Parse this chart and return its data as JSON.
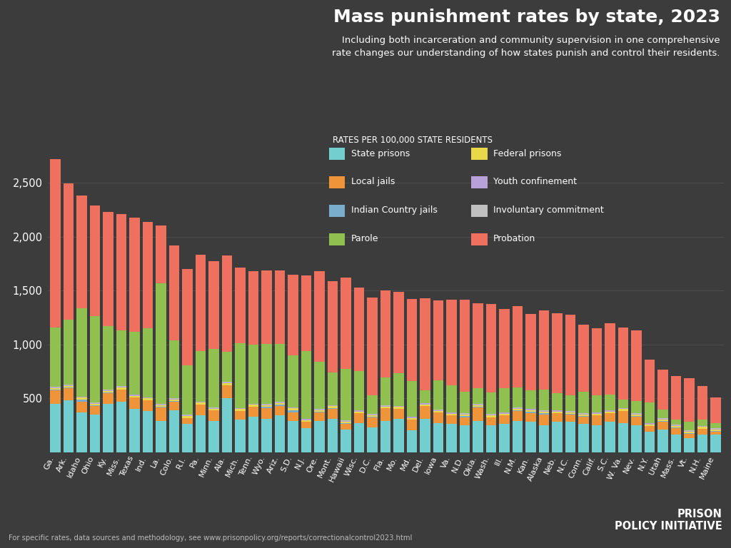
{
  "title": "Mass punishment rates by state, 2023",
  "subtitle": "Including both incarceration and community supervision in one comprehensive\nrate changes our understanding of how states punish and control their residents.",
  "legend_title": "RATES PER 100,000 STATE RESIDENTS",
  "footer": "For specific rates, data sources and methodology, see www.prisonpolicy.org/reports/correctionalcontrol2023.html",
  "categories": [
    "Ga.",
    "Ark.",
    "Idaho",
    "Ohio",
    "Ky.",
    "Miss.",
    "Texas",
    "Ind.",
    "La.",
    "Colo.",
    "R.I.",
    "Pa.",
    "Minn.",
    "Ala.",
    "Mich.",
    "Tenn.",
    "Wyo.",
    "Ariz.",
    "S.D.",
    "N.J.",
    "Ore.",
    "Mont.",
    "Hawaii",
    "Wisc.",
    "D.C.",
    "Fla.",
    "Mo.",
    "Md.",
    "Del.",
    "Iowa",
    "Va.",
    "N.D.",
    "Okla.",
    "Wash.",
    "Ill.",
    "N.M.",
    "Kan.",
    "Alaska",
    "Neb.",
    "N.C.",
    "Conn.",
    "Calif.",
    "S.C.",
    "W. Va.",
    "Nev.",
    "N.Y.",
    "Utah",
    "Mass.",
    "Vt.",
    "N.H.",
    "Maine"
  ],
  "state_prisons": [
    450,
    480,
    370,
    350,
    450,
    470,
    400,
    380,
    290,
    390,
    260,
    340,
    290,
    500,
    300,
    330,
    310,
    340,
    290,
    220,
    290,
    310,
    210,
    270,
    230,
    290,
    310,
    200,
    310,
    270,
    260,
    250,
    290,
    250,
    260,
    290,
    280,
    250,
    280,
    280,
    260,
    250,
    280,
    270,
    250,
    190,
    210,
    165,
    130,
    165,
    160
  ],
  "local_jails": [
    125,
    115,
    100,
    80,
    100,
    110,
    105,
    100,
    125,
    80,
    55,
    100,
    95,
    120,
    80,
    90,
    95,
    90,
    80,
    60,
    80,
    90,
    55,
    90,
    95,
    115,
    90,
    100,
    115,
    95,
    80,
    70,
    125,
    70,
    80,
    90,
    80,
    95,
    80,
    70,
    70,
    90,
    80,
    110,
    80,
    50,
    75,
    60,
    40,
    50,
    30
  ],
  "indian_country": [
    5,
    5,
    20,
    3,
    3,
    3,
    3,
    3,
    3,
    3,
    3,
    3,
    3,
    3,
    3,
    3,
    15,
    10,
    20,
    3,
    3,
    10,
    3,
    3,
    3,
    3,
    3,
    3,
    3,
    3,
    3,
    15,
    3,
    5,
    3,
    5,
    15,
    15,
    3,
    3,
    3,
    3,
    3,
    3,
    5,
    3,
    3,
    3,
    3,
    3,
    3
  ],
  "federal_prisons": [
    15,
    15,
    15,
    15,
    15,
    15,
    15,
    15,
    15,
    15,
    15,
    15,
    15,
    15,
    15,
    15,
    15,
    15,
    15,
    15,
    15,
    15,
    15,
    15,
    15,
    15,
    15,
    15,
    15,
    15,
    15,
    15,
    15,
    15,
    15,
    15,
    15,
    15,
    15,
    15,
    15,
    15,
    15,
    15,
    15,
    15,
    15,
    15,
    15,
    15,
    15
  ],
  "youth_confinement": [
    8,
    8,
    8,
    8,
    8,
    8,
    8,
    8,
    8,
    8,
    8,
    8,
    8,
    8,
    8,
    8,
    8,
    8,
    8,
    8,
    8,
    8,
    8,
    8,
    8,
    8,
    8,
    8,
    8,
    8,
    8,
    8,
    8,
    8,
    8,
    8,
    8,
    8,
    8,
    8,
    8,
    8,
    8,
    8,
    8,
    8,
    8,
    8,
    8,
    8,
    8
  ],
  "involuntary": [
    4,
    4,
    4,
    4,
    4,
    4,
    4,
    4,
    4,
    4,
    4,
    4,
    4,
    4,
    4,
    4,
    4,
    4,
    4,
    4,
    4,
    4,
    4,
    4,
    4,
    4,
    4,
    4,
    4,
    4,
    4,
    4,
    4,
    4,
    4,
    4,
    4,
    4,
    4,
    4,
    4,
    4,
    4,
    4,
    4,
    4,
    4,
    4,
    4,
    4,
    4
  ],
  "parole": [
    550,
    600,
    820,
    800,
    590,
    520,
    580,
    640,
    1120,
    540,
    460,
    470,
    540,
    280,
    600,
    550,
    560,
    540,
    480,
    630,
    440,
    300,
    480,
    360,
    170,
    260,
    300,
    330,
    120,
    270,
    250,
    200,
    150,
    200,
    220,
    190,
    170,
    190,
    160,
    150,
    200,
    155,
    145,
    80,
    110,
    190,
    80,
    50,
    85,
    60,
    50
  ],
  "probation": [
    1560,
    1265,
    1045,
    1025,
    1060,
    1080,
    1060,
    985,
    540,
    875,
    895,
    890,
    815,
    895,
    700,
    680,
    680,
    680,
    750,
    700,
    840,
    850,
    845,
    780,
    910,
    805,
    760,
    760,
    855,
    745,
    795,
    855,
    785,
    820,
    740,
    750,
    710,
    735,
    740,
    745,
    620,
    625,
    660,
    665,
    660,
    395,
    370,
    400,
    400,
    310,
    235
  ],
  "colors": {
    "state_prisons": "#73cfcf",
    "local_jails": "#f0943a",
    "indian_country": "#7aadcc",
    "federal_prisons": "#e8d84a",
    "youth_confinement": "#b8a0d8",
    "involuntary": "#c0c0c0",
    "parole": "#90c050",
    "probation": "#f07060"
  },
  "background_color": "#3c3c3c",
  "text_color": "#ffffff",
  "ylim": [
    0,
    3000
  ],
  "yticks": [
    500,
    1000,
    1500,
    2000,
    2500
  ]
}
